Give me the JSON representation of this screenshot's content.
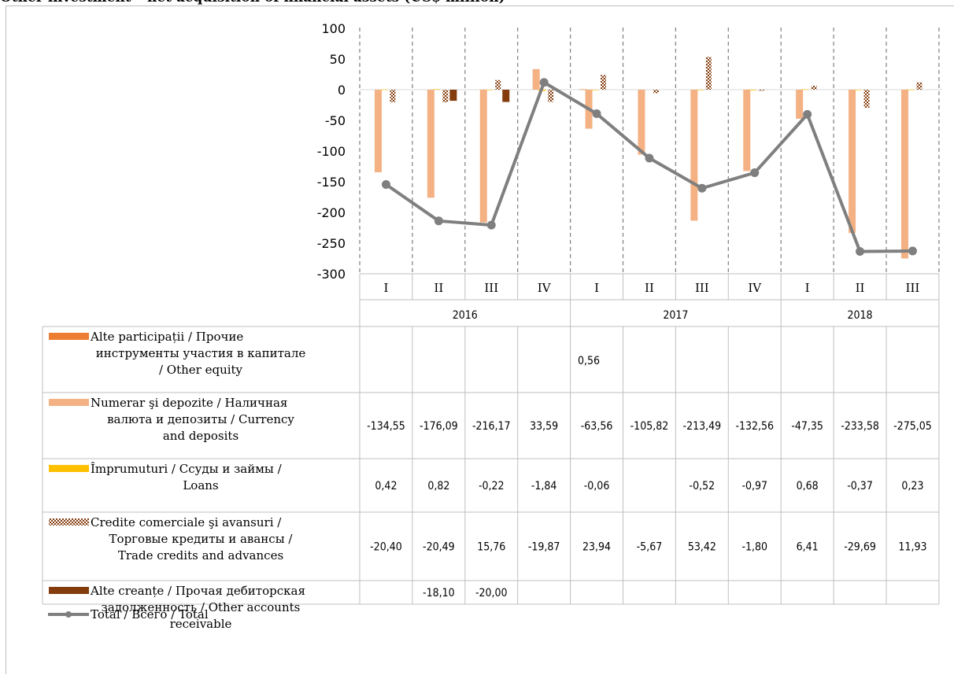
{
  "page": {
    "title": "Other investment – net acquisition of financial assets (US$ million)"
  },
  "colors": {
    "other_equity": "#ED7D31",
    "currency": "#F4B183",
    "loans": "#FFC000",
    "trade_credits": "#843C0C",
    "other_receivable": "#843C0C",
    "total": "#7F7F7F"
  },
  "chart_data": {
    "type": "bar",
    "ylim": [
      -300,
      100
    ],
    "yticks": [
      "100",
      "50",
      "0",
      "-50",
      "-100",
      "-150",
      "-200",
      "-250",
      "-300"
    ],
    "quarters": [
      "I",
      "II",
      "III",
      "IV",
      "I",
      "II",
      "III",
      "IV",
      "I",
      "II",
      "III"
    ],
    "years": [
      {
        "label": "2016",
        "span": 4
      },
      {
        "label": "2017",
        "span": 4
      },
      {
        "label": "2018",
        "span": 3
      }
    ],
    "series": [
      {
        "key": "other_equity",
        "name": "Alte participații / Прочие инструменты участия в капитале / Other equity",
        "legend_lines": [
          "Alte participații / Прочие",
          "инструменты участия в капитале",
          "/ Other equity"
        ],
        "type": "bar",
        "pattern": "solid",
        "values": [
          null,
          null,
          null,
          null,
          0.56,
          null,
          null,
          null,
          null,
          null,
          null
        ],
        "labels": [
          "",
          "",
          "",
          "",
          "0,56",
          "",
          "",
          "",
          "",
          "",
          ""
        ]
      },
      {
        "key": "currency",
        "name": "Numerar şi depozite / Наличная валюта и депозиты / Currency and deposits",
        "legend_lines": [
          "Numerar şi depozite / Наличная",
          "валюта и депозиты / Currency",
          "and deposits"
        ],
        "type": "bar",
        "pattern": "solid",
        "values": [
          -134.55,
          -176.09,
          -216.17,
          33.59,
          -63.56,
          -105.82,
          -213.49,
          -132.56,
          -47.35,
          -233.58,
          -275.05
        ],
        "labels": [
          "-134,55",
          "-176,09",
          "-216,17",
          "33,59",
          "-63,56",
          "-105,82",
          "-213,49",
          "-132,56",
          "-47,35",
          "-233,58",
          "-275,05"
        ]
      },
      {
        "key": "loans",
        "name": "Împrumuturi / Ссуды и займы / Loans",
        "legend_lines": [
          "Împrumuturi / Ссуды и займы /",
          "Loans"
        ],
        "type": "bar",
        "pattern": "solid",
        "values": [
          0.42,
          0.82,
          -0.22,
          -1.84,
          -0.06,
          null,
          -0.52,
          -0.97,
          0.68,
          -0.37,
          0.23
        ],
        "labels": [
          "0,42",
          "0,82",
          "-0,22",
          "-1,84",
          "-0,06",
          "",
          "-0,52",
          "-0,97",
          "0,68",
          "-0,37",
          "0,23"
        ]
      },
      {
        "key": "trade_credits",
        "name": "Credite comerciale şi avansuri / Торговые кредиты и авансы / Trade credits and advances",
        "legend_lines": [
          "Credite comerciale şi avansuri /",
          "Торговые кредиты и авансы /",
          "Trade credits and advances"
        ],
        "type": "bar",
        "pattern": "checker",
        "values": [
          -20.4,
          -20.49,
          15.76,
          -19.87,
          23.94,
          -5.67,
          53.42,
          -1.8,
          6.41,
          -29.69,
          11.93
        ],
        "labels": [
          "-20,40",
          "-20,49",
          "15,76",
          "-19,87",
          "23,94",
          "-5,67",
          "53,42",
          "-1,80",
          "6,41",
          "-29,69",
          "11,93"
        ]
      },
      {
        "key": "other_receivable",
        "name": "Alte creanțe / Прочая дебиторская задолженность / Other accounts receivable",
        "legend_lines": [
          "Alte creanțe / Прочая дебиторская",
          "задолженность / Other accounts",
          "receivable"
        ],
        "type": "bar",
        "pattern": "solid",
        "values": [
          null,
          -18.1,
          -20.0,
          null,
          null,
          null,
          null,
          null,
          null,
          null,
          null
        ],
        "labels": [
          "",
          "-18,10",
          "-20,00",
          "",
          "",
          "",
          "",
          "",
          "",
          "",
          ""
        ]
      },
      {
        "key": "total",
        "name": "Total / Всего / Total",
        "legend_lines": [
          "Total / Всего / Total"
        ],
        "type": "line",
        "values": [
          -154.53,
          -213.86,
          -220.63,
          11.88,
          -39.12,
          -111.49,
          -160.59,
          -135.33,
          -40.26,
          -263.64,
          -262.89
        ],
        "labels": [
          "-154,53",
          "-213,86",
          "-220,63",
          "11,88",
          "-39,12",
          "-111,49",
          "-160,59",
          "-135,33",
          "-40,26",
          "-263,64",
          "-262,89"
        ]
      }
    ]
  }
}
